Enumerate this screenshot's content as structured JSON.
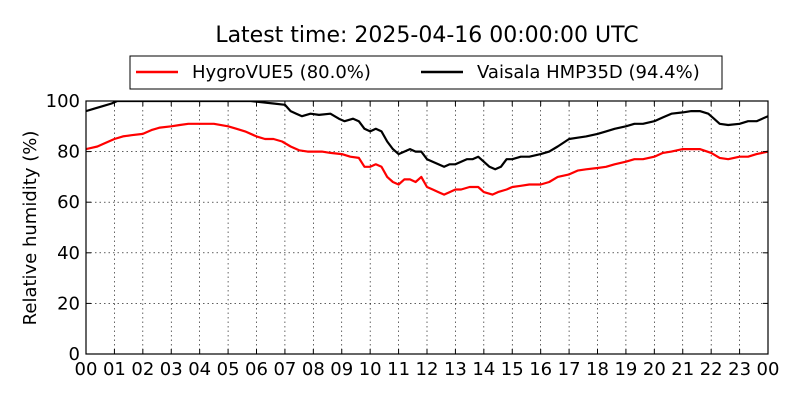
{
  "chart_data": {
    "type": "line",
    "title": "Latest time: 2025-04-16 00:00:00 UTC",
    "xlabel": "",
    "ylabel": "Relative humidity (%)",
    "xlim": [
      0,
      24
    ],
    "ylim": [
      0,
      100
    ],
    "grid": true,
    "legend_position": "top-center",
    "x_ticks": [
      "00",
      "01",
      "02",
      "03",
      "04",
      "05",
      "06",
      "07",
      "08",
      "09",
      "10",
      "11",
      "12",
      "13",
      "14",
      "15",
      "16",
      "17",
      "18",
      "19",
      "20",
      "21",
      "22",
      "23",
      "00"
    ],
    "y_ticks": [
      0,
      20,
      40,
      60,
      80,
      100
    ],
    "series": [
      {
        "name": "HygroVUE5 (80.0%)",
        "color": "#ff0000",
        "x": [
          0.0,
          0.2,
          0.4,
          0.6,
          0.8,
          1.0,
          1.3,
          1.6,
          2.0,
          2.3,
          2.6,
          3.0,
          3.3,
          3.6,
          4.0,
          4.5,
          5.0,
          5.3,
          5.6,
          6.0,
          6.3,
          6.6,
          6.9,
          7.2,
          7.5,
          7.8,
          8.0,
          8.3,
          8.6,
          9.0,
          9.3,
          9.6,
          9.8,
          10.0,
          10.2,
          10.4,
          10.6,
          10.8,
          11.0,
          11.2,
          11.4,
          11.6,
          11.8,
          12.0,
          12.2,
          12.4,
          12.6,
          12.8,
          13.0,
          13.2,
          13.5,
          13.8,
          14.0,
          14.3,
          14.5,
          14.8,
          15.0,
          15.3,
          15.6,
          16.0,
          16.3,
          16.6,
          17.0,
          17.3,
          17.6,
          18.0,
          18.3,
          18.6,
          19.0,
          19.3,
          19.6,
          20.0,
          20.3,
          20.6,
          21.0,
          21.3,
          21.6,
          22.0,
          22.3,
          22.6,
          23.0,
          23.3,
          23.6,
          24.0
        ],
        "values": [
          81,
          81.5,
          82,
          83,
          84,
          85,
          86,
          86.5,
          87,
          88.5,
          89.5,
          90,
          90.5,
          91,
          91,
          91,
          90,
          89,
          88,
          86,
          85,
          85,
          84,
          82,
          80.5,
          80,
          80,
          80,
          79.5,
          79,
          78,
          77.5,
          74,
          74,
          75,
          74,
          70,
          68,
          67,
          69,
          69,
          68,
          70,
          66,
          65,
          64,
          63,
          64,
          65,
          65,
          66,
          66,
          64,
          63,
          64,
          65,
          66,
          66.5,
          67,
          67,
          68,
          70,
          71,
          72.5,
          73,
          73.5,
          74,
          75,
          76,
          77,
          77,
          78,
          79.5,
          80,
          81,
          81,
          81,
          79.5,
          77.5,
          77,
          78,
          78,
          79,
          80
        ]
      },
      {
        "name": "Vaisala HMP35D (94.4%)",
        "color": "#000000",
        "x": [
          0.0,
          0.3,
          0.6,
          0.9,
          1.1,
          1.5,
          2.0,
          3.0,
          4.0,
          5.0,
          5.8,
          6.2,
          6.6,
          7.0,
          7.2,
          7.4,
          7.6,
          7.9,
          8.2,
          8.6,
          8.9,
          9.1,
          9.4,
          9.6,
          9.8,
          10.0,
          10.2,
          10.4,
          10.6,
          10.8,
          11.0,
          11.2,
          11.4,
          11.6,
          11.8,
          12.0,
          12.2,
          12.4,
          12.6,
          12.8,
          13.0,
          13.2,
          13.4,
          13.6,
          13.8,
          14.0,
          14.2,
          14.4,
          14.6,
          14.8,
          15.0,
          15.3,
          15.6,
          16.0,
          16.3,
          16.6,
          17.0,
          17.3,
          17.6,
          18.0,
          18.3,
          18.6,
          19.0,
          19.3,
          19.6,
          20.0,
          20.3,
          20.6,
          21.0,
          21.3,
          21.6,
          21.9,
          22.1,
          22.3,
          22.6,
          23.0,
          23.3,
          23.6,
          24.0
        ],
        "values": [
          96,
          97,
          98,
          99,
          100,
          100,
          100,
          100,
          100,
          100,
          100,
          99.5,
          99,
          98.5,
          96,
          95,
          94,
          95,
          94.5,
          95,
          93,
          92,
          93,
          92,
          89,
          88,
          89,
          88,
          84,
          81,
          79,
          80,
          81,
          80,
          80,
          77,
          76,
          75,
          74,
          75,
          75,
          76,
          77,
          77,
          78,
          76,
          74,
          73,
          74,
          77,
          77,
          78,
          78,
          79,
          80,
          82,
          85,
          85.5,
          86,
          87,
          88,
          89,
          90,
          91,
          91,
          92,
          93.5,
          95,
          95.5,
          96,
          96,
          95,
          93,
          91,
          90.5,
          91,
          92,
          92,
          94
        ]
      }
    ]
  }
}
